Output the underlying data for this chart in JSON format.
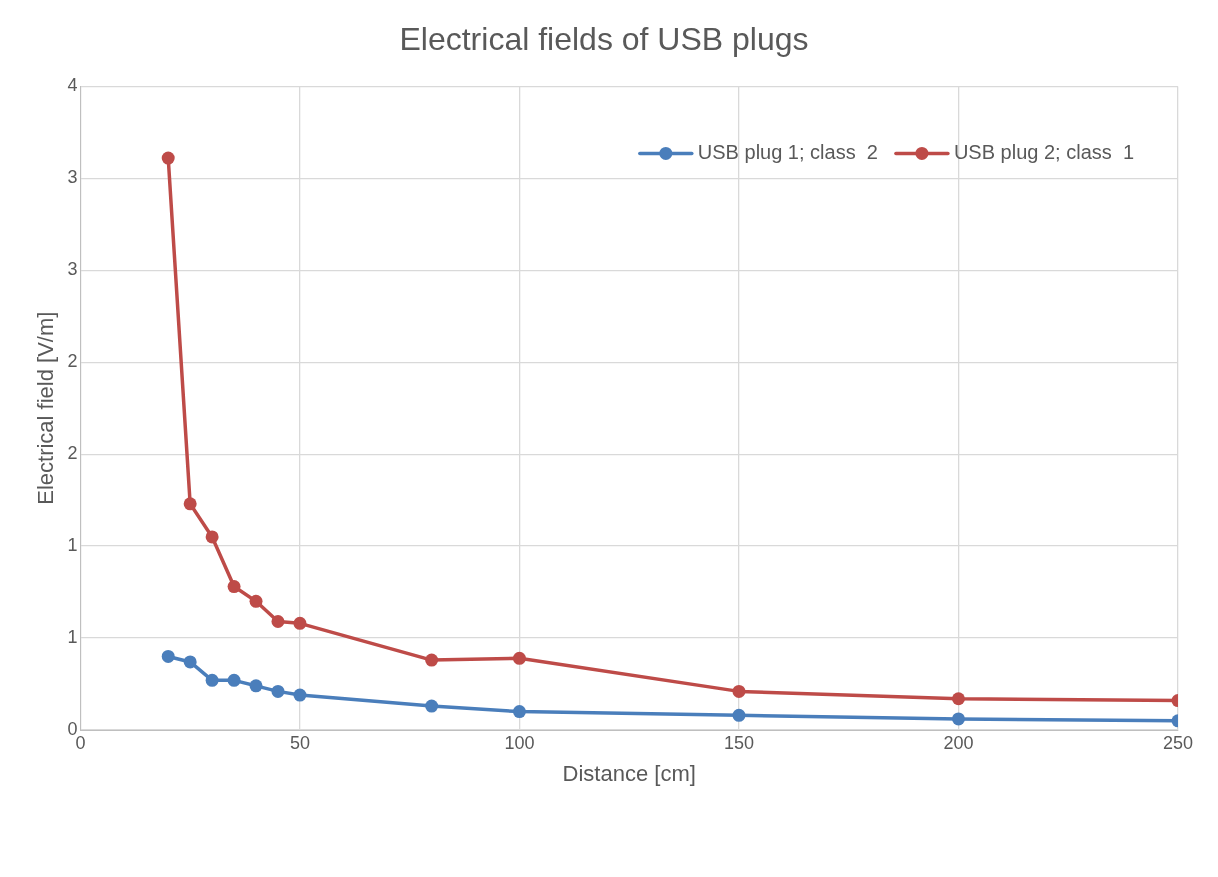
{
  "chart_data": {
    "type": "line",
    "title": "Electrical fields of USB plugs",
    "xlabel": "Distance [cm]",
    "ylabel": "Electrical field [V/m]",
    "x": [
      20,
      25,
      30,
      35,
      40,
      45,
      50,
      80,
      100,
      150,
      200,
      250
    ],
    "series": [
      {
        "name": "USB plug 1; class  2",
        "color": "#4a7ebb",
        "values": [
          0.4,
          0.37,
          0.27,
          0.27,
          0.24,
          0.21,
          0.19,
          0.13,
          0.1,
          0.08,
          0.06,
          0.05
        ]
      },
      {
        "name": "USB plug 2; class  1",
        "color": "#be4b48",
        "values": [
          3.11,
          1.23,
          1.05,
          0.78,
          0.7,
          0.59,
          0.58,
          0.38,
          0.39,
          0.21,
          0.17,
          0.16
        ]
      }
    ],
    "xlim": [
      0,
      250
    ],
    "xticks": [
      0,
      50,
      100,
      150,
      200,
      250
    ],
    "ylim": [
      0,
      3.5
    ],
    "yticks": [
      0,
      {
        "value": 0.5,
        "label": "1"
      },
      1,
      {
        "value": 1.5,
        "label": "2"
      },
      2,
      {
        "value": 2.5,
        "label": "3"
      },
      3,
      {
        "value": 3.5,
        "label": "4"
      }
    ],
    "grid": true,
    "legend": "top right",
    "marker": "circle",
    "line_style": "solid"
  }
}
